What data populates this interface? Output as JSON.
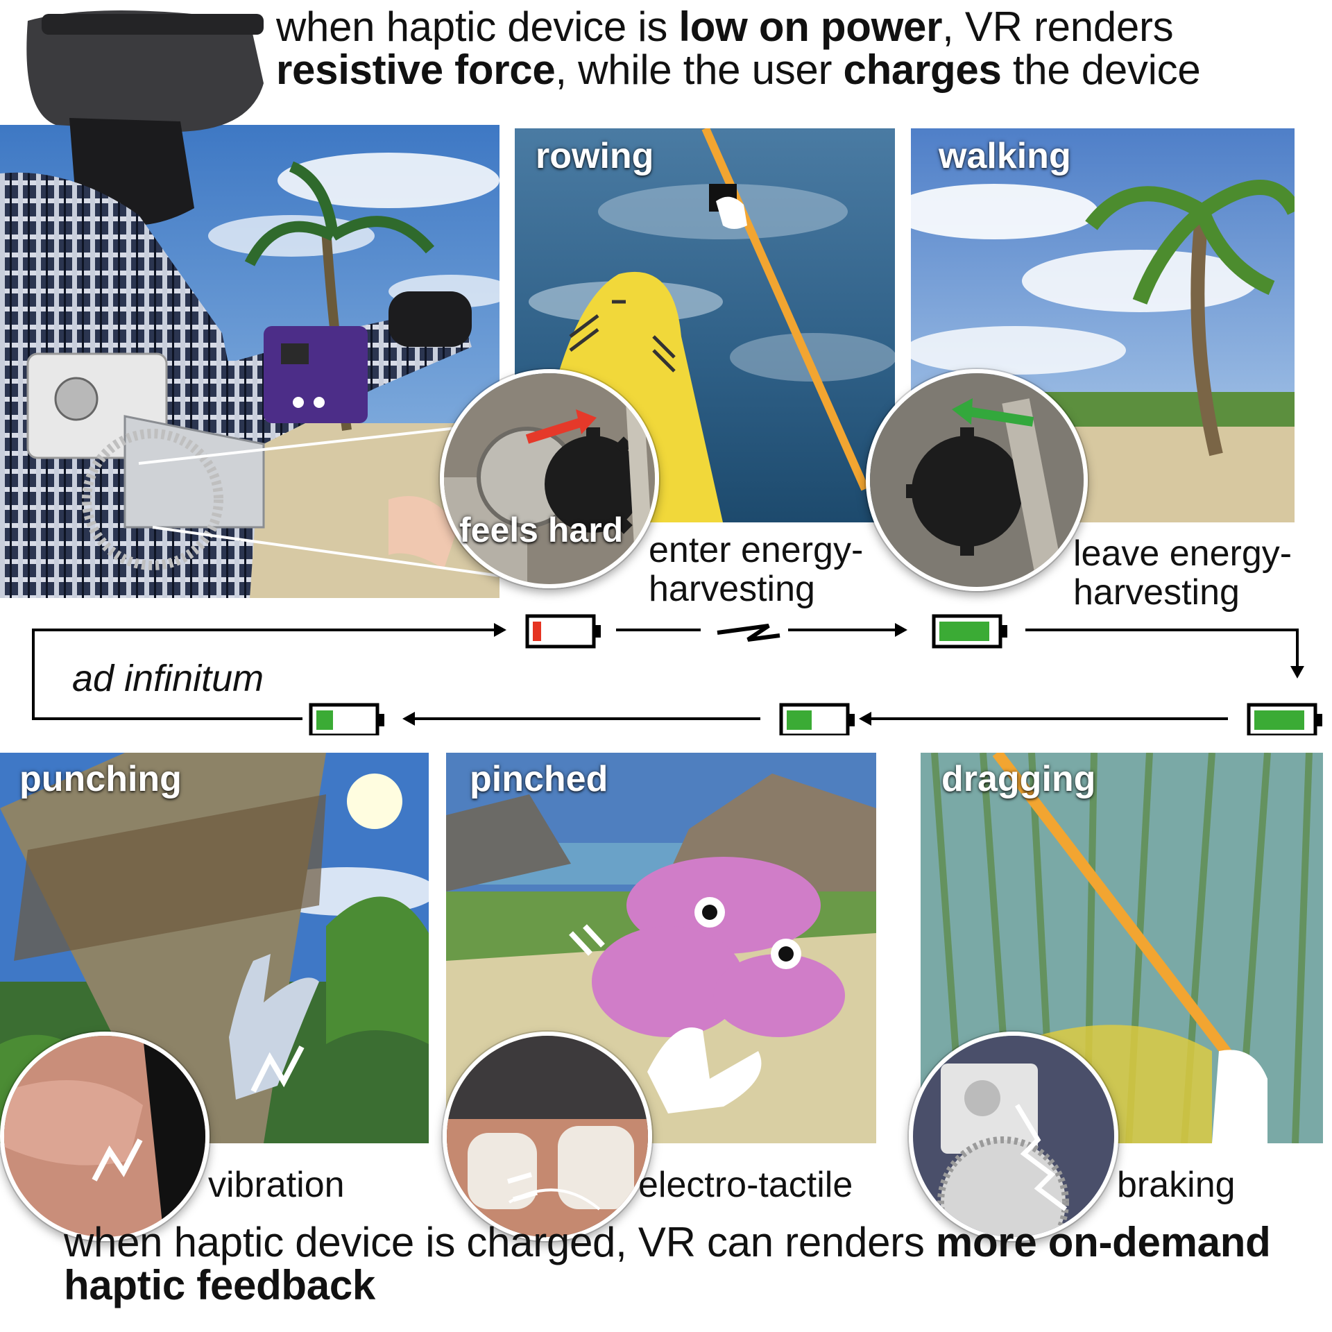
{
  "captions": {
    "top": {
      "t1": "when haptic device is ",
      "t2": "low on power",
      "t3": ", VR renders ",
      "t4": "resistive force",
      "t5": ", while the user ",
      "t6": "charges",
      "t7": " the device"
    },
    "bottom": {
      "t1": "when haptic device is charged, VR can renders ",
      "t2": "more on-demand haptic feedback"
    }
  },
  "scenes": {
    "rowing": "rowing",
    "walking": "walking",
    "punching": "punching",
    "pinched": "pinched",
    "dragging": "dragging"
  },
  "closeups": {
    "feels_hard": "feels hard"
  },
  "flow": {
    "enter_l1": "enter energy-",
    "enter_l2": "harvesting",
    "leave_l1": "leave energy-",
    "leave_l2": "harvesting",
    "ad_infinitum": "ad infinitum"
  },
  "feedback": {
    "vibration": "vibration",
    "electro": "electro-tactile",
    "braking": "braking"
  },
  "battery_levels": {
    "low": 0.15,
    "full": 0.9,
    "after_drag": 0.9,
    "after_pinch": 0.45,
    "after_punch": 0.3
  },
  "colors": {
    "battery_low": "#e53422",
    "battery_ok": "#3bab35",
    "arrow_red": "#e5392a",
    "arrow_green": "#33a83c",
    "pole_orange": "#f2a531",
    "crab_pink": "#d07dc8"
  }
}
